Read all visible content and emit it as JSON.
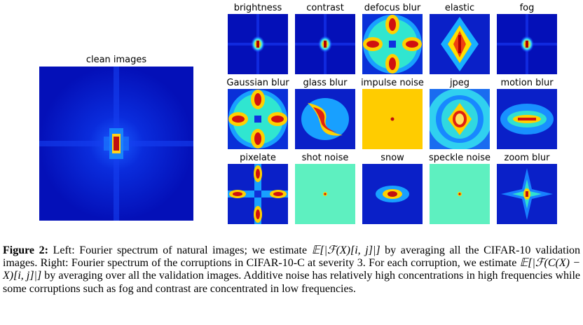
{
  "figure": {
    "left_title": "clean images",
    "tiles": [
      {
        "name": "brightness",
        "pattern": "center-dot"
      },
      {
        "name": "contrast",
        "pattern": "center-dot"
      },
      {
        "name": "defocus blur",
        "pattern": "ring-cross"
      },
      {
        "name": "elastic",
        "pattern": "diamond"
      },
      {
        "name": "fog",
        "pattern": "center-dot"
      },
      {
        "name": "Gaussian blur",
        "pattern": "ring-cross"
      },
      {
        "name": "glass blur",
        "pattern": "swirl"
      },
      {
        "name": "impulse noise",
        "pattern": "flat-yellow"
      },
      {
        "name": "jpeg",
        "pattern": "ring-ellipse"
      },
      {
        "name": "motion blur",
        "pattern": "horizontal"
      },
      {
        "name": "pixelate",
        "pattern": "cross-arms"
      },
      {
        "name": "shot noise",
        "pattern": "flat-cyan"
      },
      {
        "name": "snow",
        "pattern": "horizontal-blob"
      },
      {
        "name": "speckle noise",
        "pattern": "flat-cyan"
      },
      {
        "name": "zoom blur",
        "pattern": "star"
      }
    ],
    "caption": {
      "label": "Figure 2:",
      "seg1": " Left: Fourier spectrum of natural images; we estimate ",
      "math1": "𝔼[|ℱ(X)[i, j]|]",
      "seg2": " by averaging all the CIFAR-10 validation images. Right: Fourier spectrum of the corruptions in CIFAR-10-C at severity 3. For each corruption, we estimate ",
      "math2": "𝔼[|ℱ(C(X) − X)[i, j]|]",
      "seg3": " by averaging over all the validation images. Additive noise has relatively high concentrations in high frequencies while some corruptions such as fog and contrast are concentrated in low frequencies."
    }
  }
}
